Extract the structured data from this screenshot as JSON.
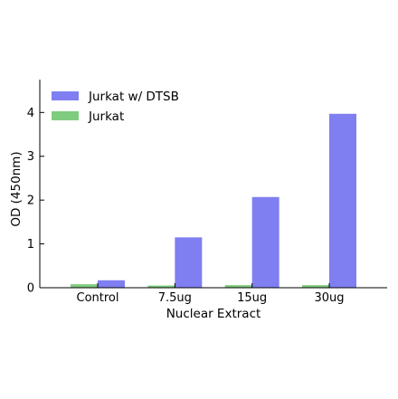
{
  "chart_data": {
    "type": "bar",
    "categories": [
      "Control",
      "7.5ug",
      "15ug",
      "30ug"
    ],
    "series": [
      {
        "name": "Jurkat",
        "values": [
          0.08,
          0.05,
          0.06,
          0.06
        ],
        "color": "#7fcc7f"
      },
      {
        "name": "Jurkat w/ DTSB",
        "values": [
          0.17,
          1.15,
          2.07,
          3.97
        ],
        "color": "#7f7ff2"
      }
    ],
    "xlabel": "Nuclear Extract",
    "ylabel": "OD (450nm)",
    "ylim": [
      0,
      4.75
    ],
    "yticks": [
      0,
      1,
      2,
      3,
      4
    ],
    "legend": {
      "placement": "top-left",
      "order": [
        "Jurkat w/ DTSB",
        "Jurkat"
      ]
    },
    "grid": false
  }
}
